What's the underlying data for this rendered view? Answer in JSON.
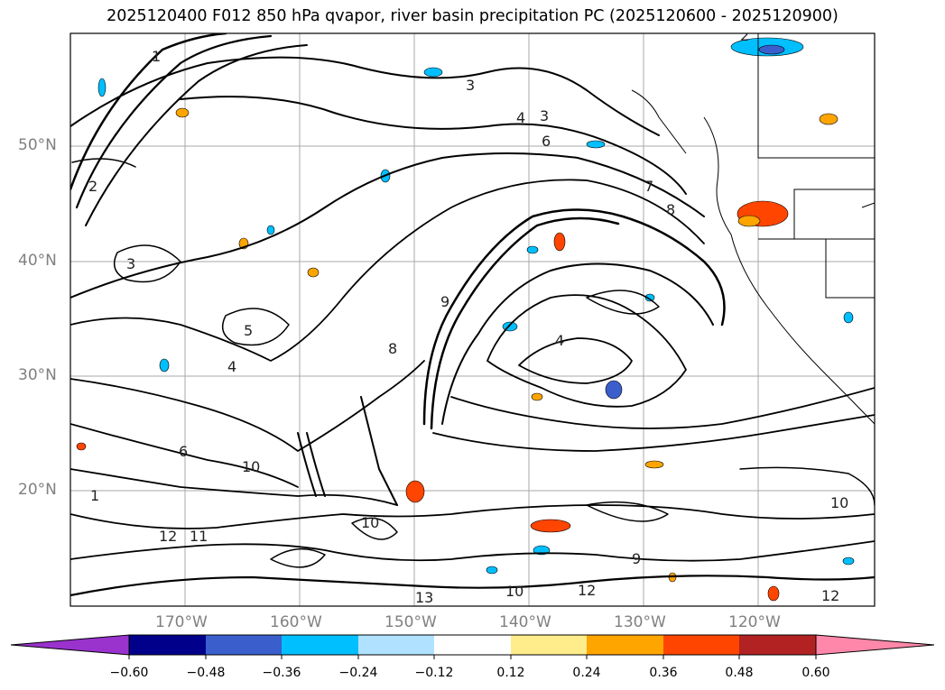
{
  "title": "2025120400 F012 850 hPa qvapor, river basin precipitation PC (2025120600 - 2025120900)",
  "map": {
    "lat_labels": [
      "50°N",
      "40°N",
      "30°N",
      "20°N"
    ],
    "lon_labels": [
      "170°W",
      "160°W",
      "150°W",
      "140°W",
      "130°W",
      "120°W"
    ],
    "contour_labels": [
      "2",
      "3",
      "4",
      "5",
      "6",
      "7",
      "8",
      "9",
      "10",
      "11",
      "12",
      "13",
      "1"
    ]
  },
  "colorbar": {
    "ticks": [
      "−0.60",
      "−0.48",
      "−0.36",
      "−0.24",
      "−0.12",
      "0.12",
      "0.24",
      "0.36",
      "0.48",
      "0.60"
    ],
    "colors": [
      "#9a32cd",
      "#00008b",
      "#3a5fcd",
      "#00bfff",
      "#b0e2ff",
      "#ffffff",
      "#ffec8b",
      "#ffa500",
      "#ff4500",
      "#b22222",
      "#ff88aa"
    ]
  }
}
